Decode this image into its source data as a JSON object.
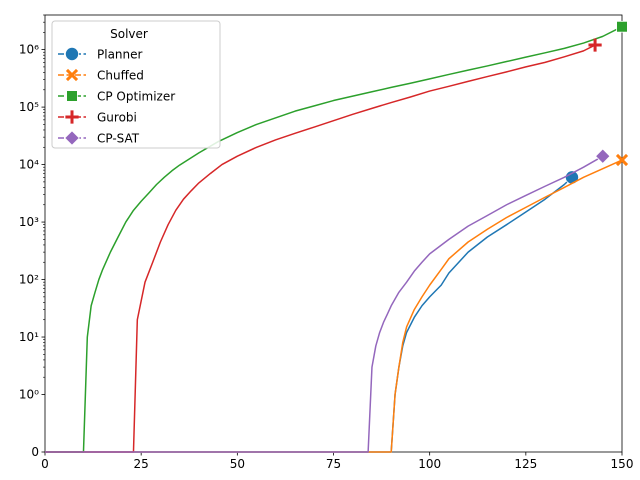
{
  "chart_data": {
    "type": "line",
    "title": "",
    "xlabel": "",
    "ylabel": "",
    "xlim": [
      0,
      150
    ],
    "y_scale": "symlog",
    "ylim": [
      0,
      4000000
    ],
    "grid": false,
    "x_ticks": [
      0,
      25,
      50,
      75,
      100,
      125,
      150
    ],
    "x_tick_labels": [
      "0",
      "25",
      "50",
      "75",
      "100",
      "125",
      "150"
    ],
    "y_ticks": [
      0,
      1,
      10,
      100,
      1000,
      10000,
      100000,
      1000000
    ],
    "y_tick_labels": [
      "0",
      "10⁰",
      "10¹",
      "10²",
      "10³",
      "10⁴",
      "10⁵",
      "10⁶"
    ],
    "legend": {
      "title": "Solver",
      "placement": "top-left"
    },
    "series": [
      {
        "name": "Planner",
        "color": "#1f77b4",
        "marker": "circle",
        "x": [
          0,
          90,
          91,
          92,
          93,
          94,
          96,
          98,
          100,
          103,
          105,
          110,
          115,
          120,
          125,
          130,
          135,
          137
        ],
        "y": [
          0,
          0,
          1,
          3,
          7,
          12,
          22,
          35,
          50,
          80,
          130,
          300,
          550,
          900,
          1500,
          2500,
          4500,
          6000
        ]
      },
      {
        "name": "Chuffed",
        "color": "#ff7f0e",
        "marker": "x",
        "x": [
          0,
          90,
          91,
          92,
          93,
          94,
          96,
          98,
          100,
          103,
          105,
          110,
          115,
          120,
          125,
          130,
          135,
          140,
          145,
          150
        ],
        "y": [
          0,
          0,
          1,
          3,
          8,
          15,
          30,
          50,
          80,
          150,
          230,
          450,
          750,
          1200,
          1800,
          2700,
          4000,
          6000,
          8500,
          12000
        ]
      },
      {
        "name": "CP Optimizer",
        "color": "#2ca02c",
        "marker": "square",
        "x": [
          0,
          10,
          11,
          12,
          13,
          14,
          15,
          17,
          19,
          21,
          23,
          25,
          27,
          29,
          31,
          33,
          35,
          40,
          45,
          50,
          55,
          60,
          65,
          70,
          75,
          80,
          85,
          90,
          95,
          100,
          105,
          110,
          115,
          120,
          125,
          130,
          135,
          140,
          145,
          150
        ],
        "y": [
          0,
          0,
          10,
          35,
          60,
          100,
          150,
          300,
          550,
          1000,
          1600,
          2300,
          3200,
          4500,
          6000,
          7800,
          9800,
          16000,
          25000,
          36000,
          50000,
          65000,
          85000,
          105000,
          130000,
          155000,
          185000,
          220000,
          260000,
          310000,
          370000,
          440000,
          520000,
          620000,
          740000,
          880000,
          1050000,
          1300000,
          1700000,
          2500000
        ]
      },
      {
        "name": "Gurobi",
        "color": "#d62728",
        "marker": "plus",
        "x": [
          0,
          23,
          24,
          26,
          28,
          30,
          32,
          34,
          36,
          38,
          40,
          43,
          46,
          50,
          55,
          60,
          65,
          70,
          75,
          80,
          85,
          90,
          95,
          100,
          105,
          110,
          115,
          120,
          125,
          130,
          135,
          140,
          143
        ],
        "y": [
          0,
          0,
          20,
          90,
          200,
          450,
          900,
          1600,
          2500,
          3500,
          4800,
          7000,
          10000,
          14000,
          20000,
          27000,
          35000,
          45000,
          58000,
          75000,
          95000,
          120000,
          150000,
          190000,
          230000,
          280000,
          340000,
          410000,
          500000,
          600000,
          750000,
          950000,
          1200000
        ]
      },
      {
        "name": "CP-SAT",
        "color": "#9467bd",
        "marker": "diamond",
        "x": [
          0,
          84,
          85,
          86,
          87,
          88,
          89,
          90,
          92,
          94,
          96,
          98,
          100,
          105,
          110,
          115,
          120,
          125,
          130,
          135,
          140,
          145
        ],
        "y": [
          0,
          0,
          3,
          7,
          12,
          18,
          25,
          35,
          60,
          90,
          140,
          200,
          280,
          500,
          850,
          1300,
          2000,
          2900,
          4200,
          6000,
          9000,
          14000
        ]
      }
    ]
  }
}
